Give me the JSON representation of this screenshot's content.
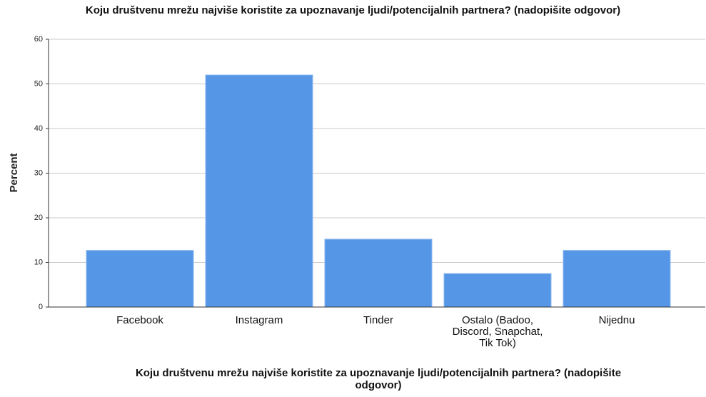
{
  "chart_data": {
    "type": "bar",
    "title": "Koju društvenu mrežu najviše koristite za upoznavanje ljudi/potencijalnih partnera? (nadopišite odgovor)",
    "x_label": "Koju društvenu mrežu najviše koristite za upoznavanje ljudi/potencijalnih partnera? (nadopišite odgovor)",
    "y_label": "Percent",
    "categories": [
      "Facebook",
      "Instagram",
      "Tinder",
      "Ostalo (Badoo, Discord, Snapchat, Tik Tok)",
      "Nijednu"
    ],
    "values": [
      12.7,
      52.0,
      15.2,
      7.5,
      12.7
    ],
    "color": "#5596e6",
    "ylim": [
      0,
      60
    ],
    "yticks": [
      0,
      10,
      20,
      30,
      40,
      50,
      60
    ],
    "grid": true
  }
}
